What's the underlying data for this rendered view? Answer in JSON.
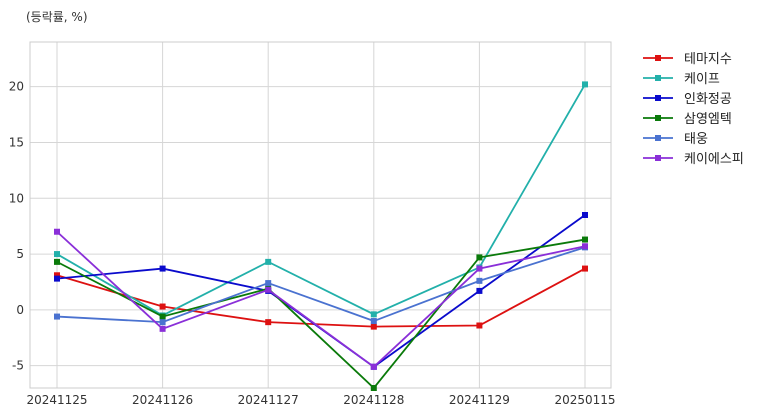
{
  "unit_label": "(등락률, %)",
  "chart_data": {
    "type": "line",
    "title": "",
    "xlabel": "",
    "ylabel": "(등락률, %)",
    "x": [
      "20241125",
      "20241126",
      "20241127",
      "20241128",
      "20241129",
      "20250115"
    ],
    "ylim": [
      -7,
      24
    ],
    "yticks": [
      -5,
      0,
      5,
      10,
      15,
      20
    ],
    "grid": true,
    "legend_position": "right-top-outside",
    "series": [
      {
        "name": "테마지수",
        "color": "#dd1111",
        "values": [
          3.1,
          0.3,
          -1.1,
          -1.5,
          -1.4,
          3.7
        ]
      },
      {
        "name": "케이프",
        "color": "#22b0aa",
        "values": [
          5.0,
          -0.5,
          4.3,
          -0.4,
          3.8,
          20.2
        ]
      },
      {
        "name": "인화정공",
        "color": "#0a0acc",
        "values": [
          2.8,
          3.7,
          1.7,
          -5.1,
          1.7,
          8.5
        ]
      },
      {
        "name": "삼영엠텍",
        "color": "#0a7a0a",
        "values": [
          4.3,
          -0.6,
          1.9,
          -7.0,
          4.7,
          6.3
        ]
      },
      {
        "name": "태웅",
        "color": "#4a72d0",
        "values": [
          -0.6,
          -1.1,
          2.4,
          -1.0,
          2.6,
          5.6
        ]
      },
      {
        "name": "케이에스피",
        "color": "#8a2fd8",
        "values": [
          7.0,
          -1.7,
          1.8,
          -5.1,
          3.7,
          5.7
        ]
      }
    ]
  }
}
